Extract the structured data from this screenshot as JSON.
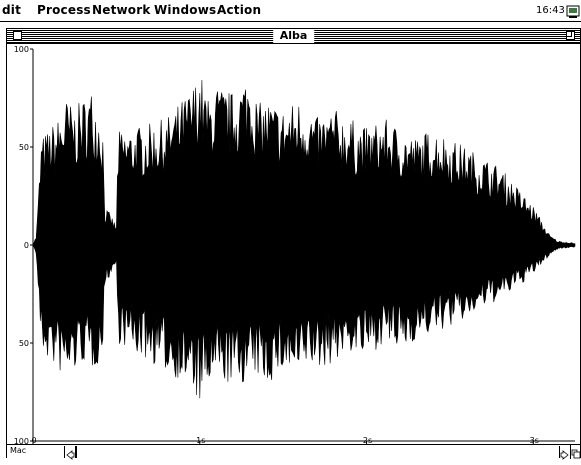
{
  "menubar": {
    "items": [
      {
        "label": "dit"
      },
      {
        "label": "Process"
      },
      {
        "label": "Network"
      },
      {
        "label": "Windows"
      },
      {
        "label": "Action"
      }
    ],
    "clock": "16:43",
    "app_icon": "application-icon"
  },
  "window": {
    "title": "Alba",
    "close_icon": "close-box-icon",
    "zoom_icon": "zoom-box-icon"
  },
  "waveform": {
    "y_ticks": [
      {
        "value": 100,
        "label": "100"
      },
      {
        "value": 50,
        "label": "50"
      },
      {
        "value": 0,
        "label": "0"
      },
      {
        "value": -50,
        "label": "50"
      },
      {
        "value": -100,
        "label": "100"
      }
    ],
    "x_ticks": [
      {
        "value": 0,
        "label": "0"
      },
      {
        "value": 1,
        "label": "1s"
      },
      {
        "value": 2,
        "label": "2s"
      },
      {
        "value": 3,
        "label": "3s"
      }
    ],
    "x_range": [
      0,
      3.25
    ],
    "y_range": [
      -100,
      100
    ],
    "envelope_upper": [
      [
        0,
        0
      ],
      [
        0.02,
        5
      ],
      [
        0.05,
        55
      ],
      [
        0.1,
        60
      ],
      [
        0.15,
        65
      ],
      [
        0.2,
        75
      ],
      [
        0.25,
        70
      ],
      [
        0.3,
        75
      ],
      [
        0.35,
        80
      ],
      [
        0.4,
        70
      ],
      [
        0.42,
        60
      ],
      [
        0.43,
        20
      ],
      [
        0.47,
        15
      ],
      [
        0.5,
        10
      ],
      [
        0.51,
        58
      ],
      [
        0.6,
        60
      ],
      [
        0.7,
        62
      ],
      [
        0.8,
        65
      ],
      [
        0.9,
        75
      ],
      [
        0.95,
        80
      ],
      [
        1.0,
        90
      ],
      [
        1.05,
        75
      ],
      [
        1.1,
        82
      ],
      [
        1.2,
        78
      ],
      [
        1.3,
        90
      ],
      [
        1.35,
        72
      ],
      [
        1.4,
        75
      ],
      [
        1.5,
        70
      ],
      [
        1.6,
        75
      ],
      [
        1.65,
        72
      ],
      [
        1.7,
        65
      ],
      [
        1.8,
        70
      ],
      [
        1.9,
        65
      ],
      [
        2.0,
        60
      ],
      [
        2.1,
        65
      ],
      [
        2.2,
        60
      ],
      [
        2.3,
        55
      ],
      [
        2.4,
        60
      ],
      [
        2.5,
        55
      ],
      [
        2.6,
        50
      ],
      [
        2.7,
        45
      ],
      [
        2.8,
        40
      ],
      [
        2.9,
        30
      ],
      [
        3.0,
        20
      ],
      [
        3.1,
        5
      ],
      [
        3.15,
        2
      ],
      [
        3.25,
        1
      ]
    ],
    "envelope_lower": [
      [
        0,
        0
      ],
      [
        0.02,
        -5
      ],
      [
        0.05,
        -55
      ],
      [
        0.1,
        -60
      ],
      [
        0.15,
        -65
      ],
      [
        0.2,
        -70
      ],
      [
        0.25,
        -65
      ],
      [
        0.3,
        -60
      ],
      [
        0.35,
        -65
      ],
      [
        0.4,
        -60
      ],
      [
        0.42,
        -55
      ],
      [
        0.43,
        -20
      ],
      [
        0.47,
        -15
      ],
      [
        0.5,
        -10
      ],
      [
        0.51,
        -50
      ],
      [
        0.6,
        -55
      ],
      [
        0.7,
        -60
      ],
      [
        0.8,
        -65
      ],
      [
        0.9,
        -70
      ],
      [
        0.95,
        -75
      ],
      [
        1.0,
        -82
      ],
      [
        1.05,
        -75
      ],
      [
        1.1,
        -70
      ],
      [
        1.2,
        -72
      ],
      [
        1.3,
        -70
      ],
      [
        1.35,
        -68
      ],
      [
        1.4,
        -72
      ],
      [
        1.5,
        -65
      ],
      [
        1.6,
        -70
      ],
      [
        1.65,
        -60
      ],
      [
        1.7,
        -65
      ],
      [
        1.8,
        -60
      ],
      [
        1.9,
        -55
      ],
      [
        2.0,
        -58
      ],
      [
        2.1,
        -50
      ],
      [
        2.2,
        -55
      ],
      [
        2.3,
        -48
      ],
      [
        2.4,
        -45
      ],
      [
        2.5,
        -42
      ],
      [
        2.6,
        -38
      ],
      [
        2.7,
        -32
      ],
      [
        2.8,
        -28
      ],
      [
        2.9,
        -22
      ],
      [
        3.0,
        -15
      ],
      [
        3.1,
        -5
      ],
      [
        3.15,
        -2
      ],
      [
        3.25,
        -1
      ]
    ]
  },
  "statusbar": {
    "mode_label": "Mac"
  }
}
